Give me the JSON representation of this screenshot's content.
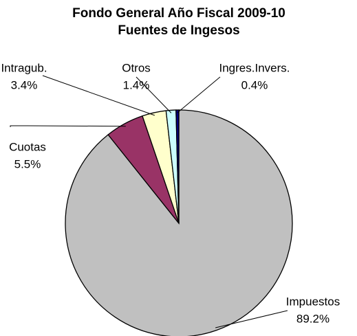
{
  "chart_data": {
    "type": "pie",
    "title": [
      "Fondo General Año Fiscal 2009-10",
      "Fuentes de Ingesos"
    ],
    "categories": [
      "Impuestos",
      "Cuotas",
      "Intragub.",
      "Otros",
      "Ingres.Invers."
    ],
    "values": [
      89.2,
      5.5,
      3.4,
      1.4,
      0.4
    ],
    "value_labels": [
      "89.2%",
      "5.5%",
      "3.4%",
      "1.4%",
      "0.4%"
    ],
    "colors": [
      "#c0c0c0",
      "#993366",
      "#ffffcc",
      "#ccffff",
      "#000080"
    ]
  }
}
